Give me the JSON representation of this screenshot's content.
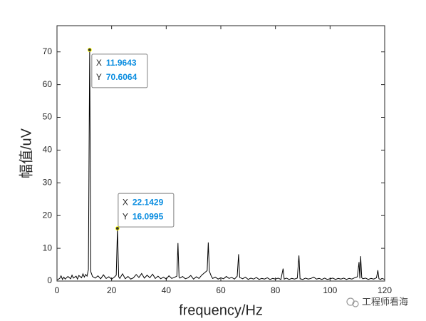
{
  "chart_data": {
    "type": "line",
    "x_label": "frequency/Hz",
    "y_label": "幅值/uV",
    "x": [
      0,
      1,
      1.5,
      2,
      2.5,
      3,
      4,
      5,
      5.5,
      6,
      7,
      7.5,
      8,
      9,
      9.5,
      10,
      10.5,
      11,
      11.5,
      11.9643,
      12.4,
      13,
      14,
      15,
      16,
      17,
      18,
      19,
      20,
      21,
      21.7,
      22.1429,
      22.6,
      23,
      24,
      25,
      26,
      27,
      28,
      29,
      30,
      31,
      32,
      33,
      34,
      35,
      36,
      37,
      38,
      39,
      40,
      41,
      42,
      43,
      43.9,
      44.3,
      44.7,
      45,
      46,
      47,
      48,
      49,
      50,
      51,
      52,
      53,
      54,
      55,
      55.4,
      55.8,
      56.5,
      57,
      58,
      59,
      60,
      61,
      62,
      63,
      64,
      65,
      66,
      66.5,
      66.9,
      68,
      69,
      70,
      71,
      72,
      73,
      74,
      75,
      76,
      77,
      78,
      79,
      80,
      81,
      82,
      82.8,
      83.2,
      84,
      85,
      86,
      87,
      88,
      88.6,
      89,
      90,
      91,
      92,
      93,
      94,
      95,
      96,
      97,
      98,
      99,
      100,
      101,
      102,
      103,
      104,
      105,
      106,
      107,
      108,
      109,
      110,
      110.6,
      110.9,
      111.2,
      111.6,
      112,
      113,
      114,
      115,
      116,
      117,
      117.5,
      117.9,
      118.5,
      119,
      120
    ],
    "values": [
      0.3,
      0.8,
      1.6,
      0.5,
      1.2,
      0.6,
      1.4,
      0.7,
      1.8,
      0.9,
      1.5,
      0.6,
      1.7,
      1.0,
      2.2,
      1.2,
      2.0,
      1.5,
      3.5,
      70.6064,
      2.8,
      1.4,
      0.9,
      1.6,
      0.7,
      1.9,
      0.8,
      1.3,
      0.6,
      1.2,
      1.8,
      16.0995,
      1.3,
      0.8,
      2.2,
      0.7,
      1.4,
      0.6,
      1.0,
      2.0,
      1.1,
      2.3,
      0.9,
      1.8,
      1.0,
      2.1,
      0.8,
      1.5,
      0.7,
      1.2,
      0.6,
      1.6,
      0.8,
      1.1,
      1.5,
      11.6,
      1.2,
      0.9,
      1.4,
      0.7,
      1.0,
      1.7,
      0.6,
      1.3,
      0.8,
      1.8,
      2.5,
      3.2,
      11.8,
      3.0,
      1.5,
      0.8,
      1.2,
      0.6,
      1.0,
      0.7,
      1.4,
      0.8,
      1.1,
      0.6,
      1.5,
      8.2,
      1.1,
      0.7,
      1.2,
      0.5,
      0.9,
      0.6,
      1.1,
      0.5,
      0.8,
      0.6,
      1.0,
      0.5,
      0.8,
      0.6,
      0.9,
      0.5,
      3.8,
      0.6,
      0.9,
      0.5,
      0.8,
      0.6,
      0.9,
      7.8,
      0.7,
      0.5,
      0.9,
      0.6,
      0.8,
      1.2,
      0.6,
      0.8,
      0.5,
      0.9,
      0.5,
      0.7,
      0.9,
      0.5,
      0.8,
      0.6,
      0.9,
      0.5,
      0.8,
      0.6,
      1.0,
      1.3,
      5.8,
      0.8,
      7.6,
      1.0,
      0.7,
      0.9,
      0.5,
      0.8,
      0.6,
      1.0,
      3.3,
      0.7,
      0.5,
      0.8,
      0.5
    ],
    "color": "#000000",
    "xlim": [
      0,
      120
    ],
    "xticks": [
      0,
      20,
      40,
      60,
      80,
      100,
      120
    ],
    "ylim": [
      0,
      78
    ],
    "yticks": [
      0,
      10,
      20,
      30,
      40,
      50,
      60,
      70
    ],
    "datatips": [
      {
        "x_label": "X",
        "x": 11.9643,
        "y_label": "Y",
        "y": 70.6064
      },
      {
        "x_label": "X",
        "x": 22.1429,
        "y_label": "Y",
        "y": 16.0995
      }
    ],
    "watermark": "工程师看海"
  }
}
